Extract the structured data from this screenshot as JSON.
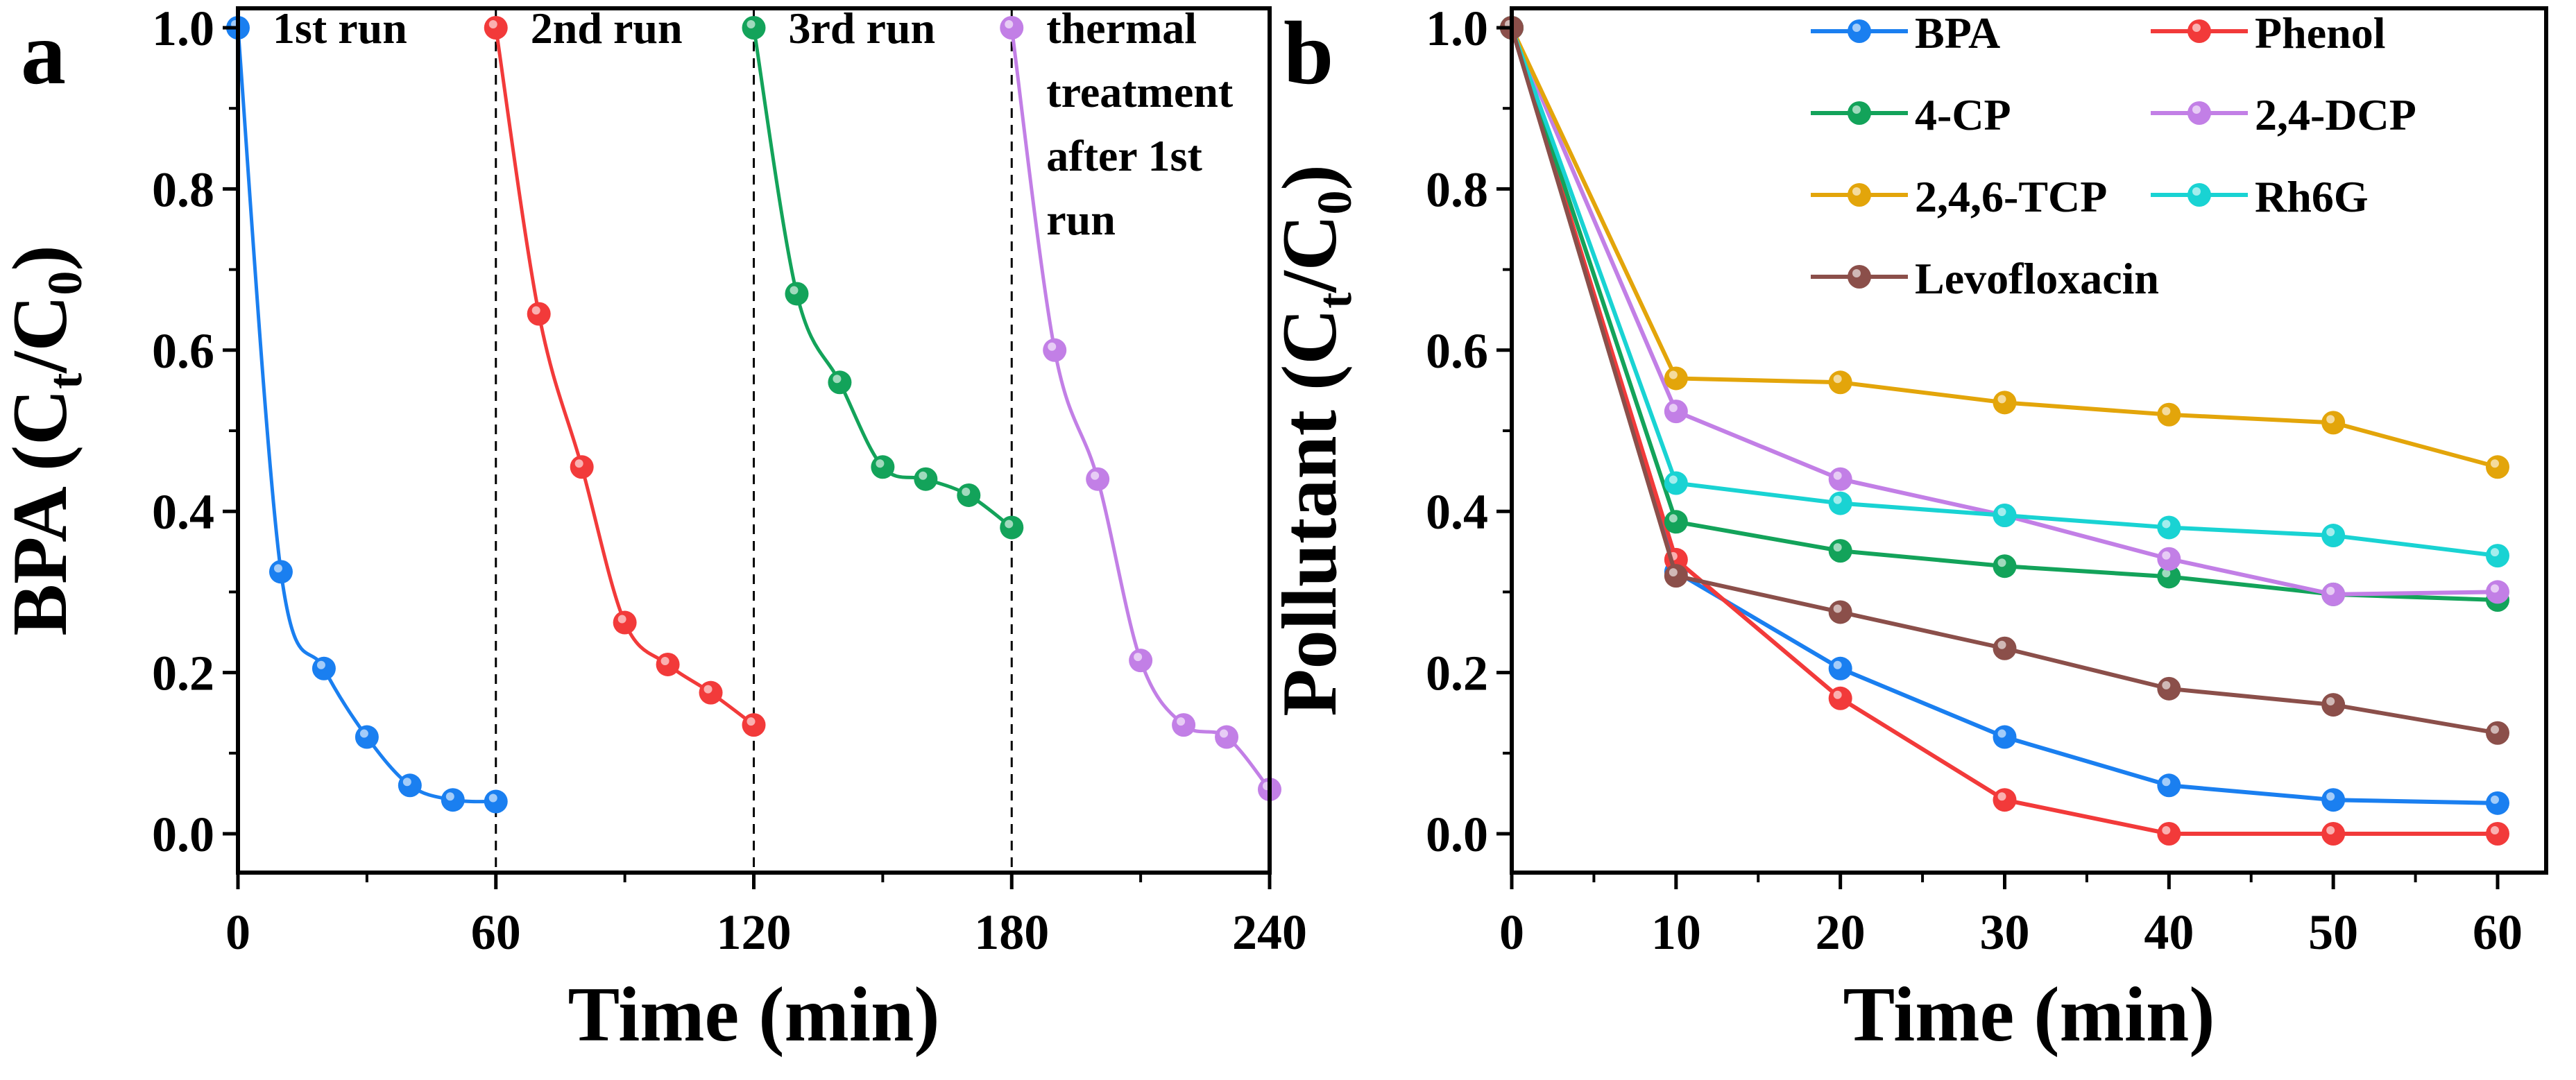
{
  "chart_data": [
    {
      "panel_label": "a",
      "type": "line",
      "xlabel": "Time (min)",
      "ylabel_parts": [
        "BPA (C",
        "t",
        "/C",
        "0",
        ")"
      ],
      "xlim": [
        0,
        240
      ],
      "ylim": [
        -0.05,
        1.05
      ],
      "xticks": [
        0,
        60,
        120,
        180,
        240
      ],
      "xticks_minor_step": 30,
      "yticks": [
        "0.0",
        "0.2",
        "0.4",
        "0.6",
        "0.8",
        "1.0"
      ],
      "grid": false,
      "dashed_vlines": [
        60,
        120,
        180
      ],
      "series": [
        {
          "name": "1st run",
          "label_lines": [
            "1st run"
          ],
          "color": "#1a7ff0",
          "x": [
            0,
            10,
            20,
            30,
            40,
            50,
            60
          ],
          "y": [
            1.0,
            0.325,
            0.205,
            0.12,
            0.06,
            0.042,
            0.04
          ]
        },
        {
          "name": "2nd run",
          "label_lines": [
            "2nd run"
          ],
          "color": "#f23a3a",
          "x": [
            60,
            70,
            80,
            90,
            100,
            110,
            120
          ],
          "y": [
            1.0,
            0.645,
            0.455,
            0.262,
            0.21,
            0.175,
            0.135
          ]
        },
        {
          "name": "3rd run",
          "label_lines": [
            "3rd run"
          ],
          "color": "#13a35a",
          "x": [
            120,
            130,
            140,
            150,
            160,
            170,
            180
          ],
          "y": [
            1.0,
            0.67,
            0.56,
            0.455,
            0.44,
            0.42,
            0.38
          ]
        },
        {
          "name": "thermal treatment after 1st run",
          "label_lines": [
            "thermal",
            "treatment",
            "after 1st",
            "run"
          ],
          "color": "#c27fe6",
          "x": [
            180,
            190,
            200,
            210,
            220,
            230,
            240
          ],
          "y": [
            1.0,
            0.6,
            0.44,
            0.215,
            0.135,
            0.12,
            0.055
          ]
        }
      ]
    },
    {
      "panel_label": "b",
      "type": "line",
      "xlabel": "Time (min)",
      "ylabel_parts": [
        "Pollutant (C",
        "t",
        "/C",
        "0",
        ")"
      ],
      "xlim": [
        0,
        62
      ],
      "ylim": [
        -0.05,
        1.05
      ],
      "xticks": [
        0,
        10,
        20,
        30,
        40,
        50,
        60
      ],
      "xticks_minor_step": 5,
      "yticks": [
        "0.0",
        "0.2",
        "0.4",
        "0.6",
        "0.8",
        "1.0"
      ],
      "grid": false,
      "legend_position": "top-right",
      "x": [
        0,
        10,
        20,
        30,
        40,
        50,
        60
      ],
      "series": [
        {
          "name": "BPA",
          "color": "#1a7ff0",
          "y": [
            1.0,
            0.325,
            0.205,
            0.12,
            0.06,
            0.042,
            0.038
          ]
        },
        {
          "name": "Phenol",
          "color": "#f23a3a",
          "y": [
            1.0,
            0.34,
            0.168,
            0.042,
            0.0,
            0.0,
            0.0
          ]
        },
        {
          "name": "4-CP",
          "color": "#13a35a",
          "y": [
            1.0,
            0.387,
            0.351,
            0.332,
            0.319,
            0.297,
            0.29
          ]
        },
        {
          "name": "2,4-DCP",
          "color": "#c27fe6",
          "y": [
            1.0,
            0.524,
            0.44,
            0.395,
            0.341,
            0.297,
            0.3
          ]
        },
        {
          "name": "2,4,6-TCP",
          "color": "#e3a50a",
          "y": [
            1.0,
            0.565,
            0.56,
            0.535,
            0.52,
            0.51,
            0.455
          ]
        },
        {
          "name": "Rh6G",
          "color": "#19d3d3",
          "y": [
            1.0,
            0.435,
            0.41,
            0.395,
            0.38,
            0.37,
            0.345
          ]
        },
        {
          "name": "Levofloxacin",
          "color": "#8b4f4a",
          "y": [
            1.0,
            0.32,
            0.275,
            0.23,
            0.18,
            0.16,
            0.125
          ]
        }
      ]
    }
  ]
}
